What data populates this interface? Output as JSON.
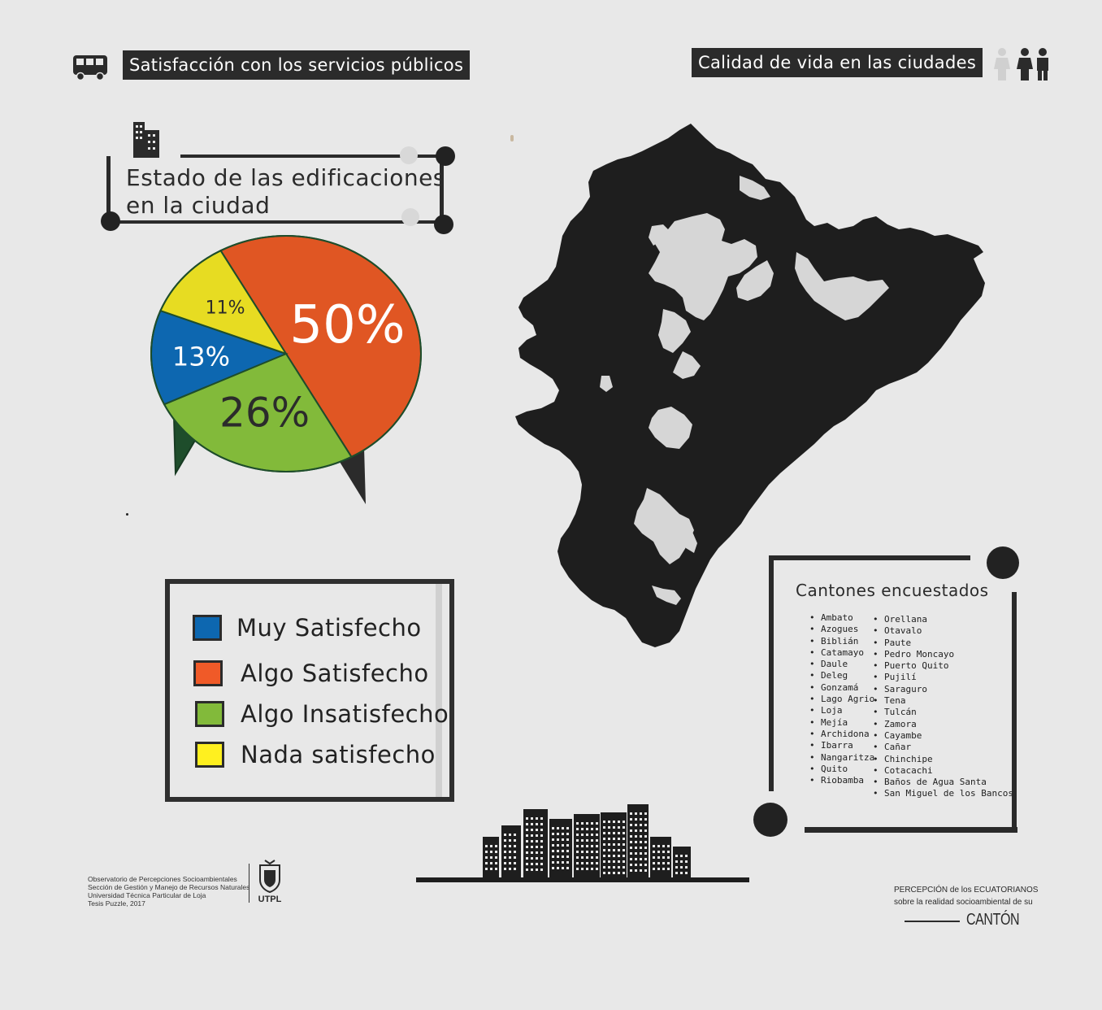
{
  "headers": {
    "left_title": "Satisfacción con los servicios públicos",
    "right_title": "Calidad de vida en las ciudades"
  },
  "pie_section": {
    "title_line1": "Estado de las edificaciones",
    "title_line2": "en la ciudad"
  },
  "chart_data": {
    "type": "pie",
    "categories": [
      "Algo Satisfecho",
      "Algo Insatisfecho",
      "Muy Satisfecho",
      "Nada satisfecho"
    ],
    "values": [
      50,
      26,
      13,
      11
    ],
    "labels": [
      "50%",
      "26%",
      "13%",
      "11%"
    ],
    "colors": [
      "#e05623",
      "#82ba3a",
      "#0d67b0",
      "#e7dc22"
    ],
    "title": "Estado de las edificaciones en la ciudad"
  },
  "legend": [
    {
      "label": "Muy Satisfecho",
      "color": "#0d67b0"
    },
    {
      "label": "Algo Satisfecho",
      "color": "#f05a28"
    },
    {
      "label": "Algo Insatisfecho",
      "color": "#82ba3a"
    },
    {
      "label": "Nada satisfecho",
      "color": "#fff01f"
    }
  ],
  "cantones": {
    "title": "Cantones encuestados",
    "col1": [
      "Ambato",
      "Azogues",
      "Biblián",
      "Catamayo",
      "Daule",
      "Deleg",
      "Gonzamá",
      "Lago Agrio",
      "Loja",
      "Mejía",
      "Archidona",
      "Ibarra",
      "Nangaritza",
      "Quito",
      "Riobamba"
    ],
    "col2": [
      "Orellana",
      "Otavalo",
      "Paute",
      "Pedro Moncayo",
      "Puerto Quito",
      "Pujilí",
      "Saraguro",
      "Tena",
      "Tulcán",
      "Zamora",
      "Cayambe",
      "Cañar",
      "Chinchipe",
      "Cotacachi",
      "Baños de Agua Santa",
      "San Miguel de los Bancos"
    ]
  },
  "footer": {
    "line1": "Observatorio de Percepciones Socioambientales",
    "line2": "Sección de Gestión y Manejo de Recursos Naturales",
    "line3": "Universidad Técnica Particular de Loja",
    "line4": "Tesis Puzzle, 2017",
    "logo_text": "UTPL",
    "brand_line1": "PERCEPCIÓN de los ECUATORIANOS",
    "brand_line2": "sobre la realidad socioambiental de su",
    "brand_line3": "CANTÓN"
  }
}
